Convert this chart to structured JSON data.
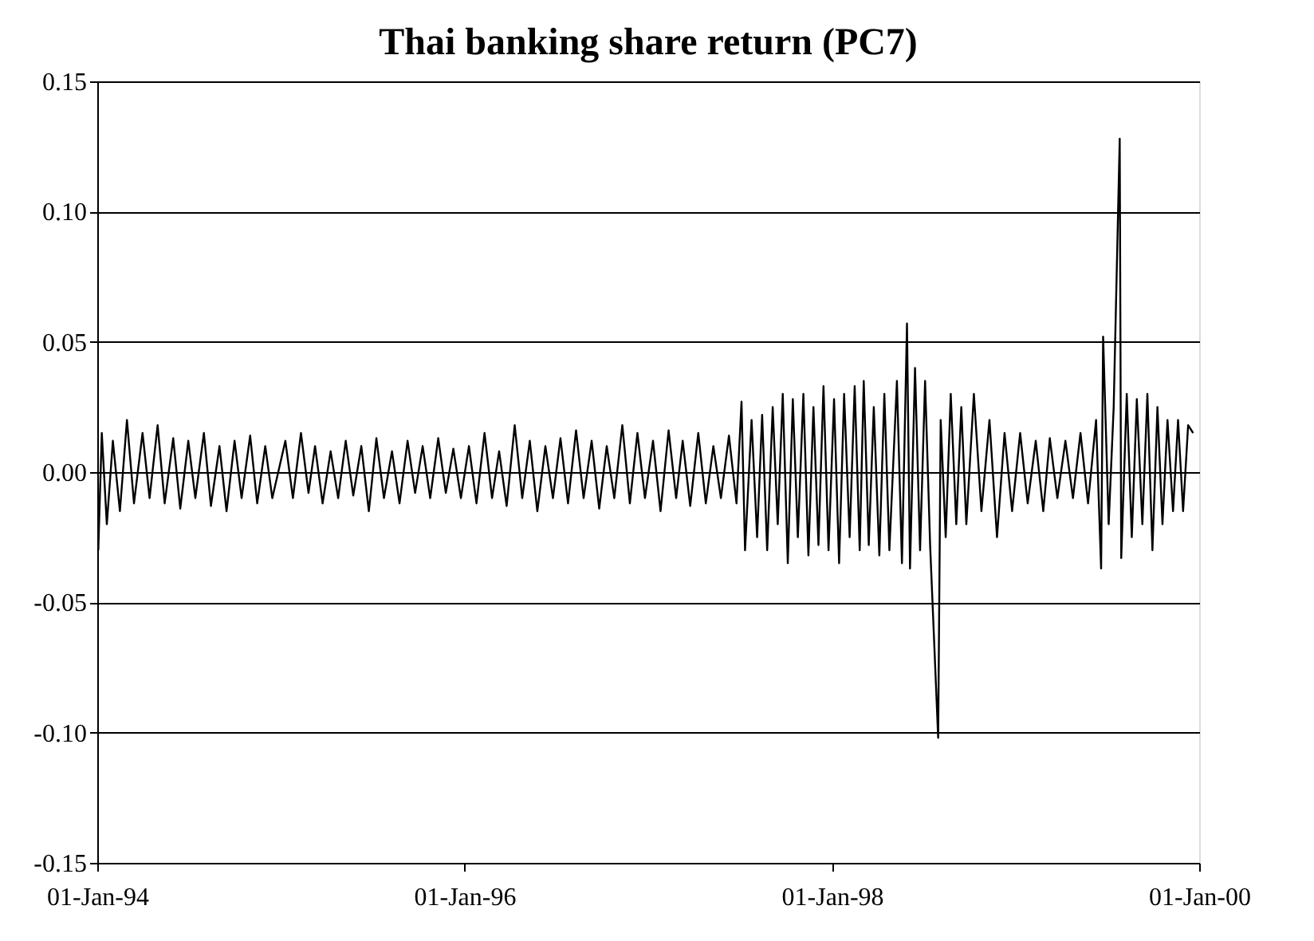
{
  "chart_data": {
    "type": "line",
    "title": "Thai banking share return (PC7)",
    "x": [
      "1994-01-03",
      "1994-01-10",
      "1994-01-20",
      "1994-02-01",
      "1994-02-15",
      "1994-03-01",
      "1994-03-15",
      "1994-04-01",
      "1994-04-15",
      "1994-05-01",
      "1994-05-15",
      "1994-06-01",
      "1994-06-15",
      "1994-07-01",
      "1994-07-15",
      "1994-08-01",
      "1994-08-15",
      "1994-09-01",
      "1994-09-15",
      "1994-10-01",
      "1994-10-15",
      "1994-11-01",
      "1994-11-15",
      "1994-12-01",
      "1994-12-15",
      "1995-01-10",
      "1995-01-25",
      "1995-02-10",
      "1995-02-25",
      "1995-03-10",
      "1995-03-25",
      "1995-04-10",
      "1995-04-25",
      "1995-05-10",
      "1995-05-25",
      "1995-06-10",
      "1995-06-25",
      "1995-07-10",
      "1995-07-25",
      "1995-08-10",
      "1995-08-25",
      "1995-09-10",
      "1995-09-25",
      "1995-10-10",
      "1995-10-25",
      "1995-11-10",
      "1995-11-25",
      "1995-12-10",
      "1995-12-25",
      "1996-01-10",
      "1996-01-25",
      "1996-02-10",
      "1996-02-25",
      "1996-03-10",
      "1996-03-25",
      "1996-04-10",
      "1996-04-25",
      "1996-05-10",
      "1996-05-25",
      "1996-06-10",
      "1996-06-25",
      "1996-07-10",
      "1996-07-25",
      "1996-08-10",
      "1996-08-25",
      "1996-09-10",
      "1996-09-25",
      "1996-10-10",
      "1996-10-25",
      "1996-11-10",
      "1996-11-25",
      "1996-12-10",
      "1996-12-25",
      "1997-01-10",
      "1997-01-25",
      "1997-02-10",
      "1997-02-25",
      "1997-03-10",
      "1997-03-25",
      "1997-04-10",
      "1997-04-25",
      "1997-05-10",
      "1997-05-25",
      "1997-06-10",
      "1997-06-25",
      "1997-07-05",
      "1997-07-12",
      "1997-07-25",
      "1997-08-05",
      "1997-08-15",
      "1997-08-25",
      "1997-09-05",
      "1997-09-15",
      "1997-09-25",
      "1997-10-05",
      "1997-10-15",
      "1997-10-25",
      "1997-11-05",
      "1997-11-15",
      "1997-11-25",
      "1997-12-05",
      "1997-12-15",
      "1997-12-25",
      "1998-01-05",
      "1998-01-15",
      "1998-01-25",
      "1998-02-05",
      "1998-02-15",
      "1998-02-25",
      "1998-03-05",
      "1998-03-15",
      "1998-03-25",
      "1998-04-05",
      "1998-04-15",
      "1998-04-25",
      "1998-05-10",
      "1998-05-20",
      "1998-05-30",
      "1998-06-05",
      "1998-06-15",
      "1998-06-25",
      "1998-07-05",
      "1998-07-15",
      "1998-07-31",
      "1998-08-05",
      "1998-08-15",
      "1998-08-25",
      "1998-09-05",
      "1998-09-15",
      "1998-09-25",
      "1998-10-10",
      "1998-10-25",
      "1998-11-10",
      "1998-11-25",
      "1998-12-10",
      "1998-12-25",
      "1999-01-10",
      "1999-01-25",
      "1999-02-10",
      "1999-02-25",
      "1999-03-10",
      "1999-03-25",
      "1999-04-10",
      "1999-04-25",
      "1999-05-10",
      "1999-05-25",
      "1999-06-10",
      "1999-06-20",
      "1999-06-24",
      "1999-07-05",
      "1999-07-15",
      "1999-07-27",
      "1999-07-30",
      "1999-08-10",
      "1999-08-20",
      "1999-08-30",
      "1999-09-10",
      "1999-09-20",
      "1999-09-30",
      "1999-10-10",
      "1999-10-20",
      "1999-10-30",
      "1999-11-10",
      "1999-11-20",
      "1999-11-30",
      "1999-12-10",
      "1999-12-20"
    ],
    "values": [
      -0.03,
      0.015,
      -0.02,
      0.012,
      -0.015,
      0.02,
      -0.012,
      0.015,
      -0.01,
      0.018,
      -0.012,
      0.013,
      -0.014,
      0.012,
      -0.01,
      0.015,
      -0.013,
      0.01,
      -0.015,
      0.012,
      -0.01,
      0.014,
      -0.012,
      0.01,
      -0.01,
      0.012,
      -0.01,
      0.015,
      -0.008,
      0.01,
      -0.012,
      0.008,
      -0.01,
      0.012,
      -0.009,
      0.01,
      -0.015,
      0.013,
      -0.01,
      0.008,
      -0.012,
      0.012,
      -0.008,
      0.01,
      -0.01,
      0.013,
      -0.008,
      0.009,
      -0.01,
      0.01,
      -0.012,
      0.015,
      -0.01,
      0.008,
      -0.013,
      0.018,
      -0.01,
      0.012,
      -0.015,
      0.01,
      -0.01,
      0.013,
      -0.012,
      0.016,
      -0.01,
      0.012,
      -0.014,
      0.01,
      -0.01,
      0.018,
      -0.012,
      0.015,
      -0.01,
      0.012,
      -0.015,
      0.016,
      -0.01,
      0.012,
      -0.013,
      0.015,
      -0.012,
      0.01,
      -0.01,
      0.014,
      -0.012,
      0.027,
      -0.03,
      0.02,
      -0.025,
      0.022,
      -0.03,
      0.025,
      -0.02,
      0.03,
      -0.035,
      0.028,
      -0.025,
      0.03,
      -0.032,
      0.025,
      -0.028,
      0.033,
      -0.03,
      0.028,
      -0.035,
      0.03,
      -0.025,
      0.033,
      -0.03,
      0.035,
      -0.028,
      0.025,
      -0.032,
      0.03,
      -0.03,
      0.035,
      -0.035,
      0.057,
      -0.037,
      0.04,
      -0.03,
      0.035,
      -0.028,
      -0.102,
      0.02,
      -0.025,
      0.03,
      -0.02,
      0.025,
      -0.02,
      0.03,
      -0.015,
      0.02,
      -0.025,
      0.015,
      -0.015,
      0.015,
      -0.012,
      0.012,
      -0.015,
      0.013,
      -0.01,
      0.012,
      -0.01,
      0.015,
      -0.012,
      0.02,
      -0.037,
      0.052,
      -0.02,
      0.025,
      0.128,
      -0.033,
      0.03,
      -0.025,
      0.028,
      -0.02,
      0.03,
      -0.03,
      0.025,
      -0.02,
      0.02,
      -0.015,
      0.02,
      -0.015,
      0.018,
      0.015
    ],
    "color": "#000000",
    "xlim": [
      "1994-01-01",
      "2000-01-01"
    ],
    "xticks": [
      {
        "value": "1994-01-01",
        "label": "01-Jan-94"
      },
      {
        "value": "1996-01-01",
        "label": "01-Jan-96"
      },
      {
        "value": "1998-01-01",
        "label": "01-Jan-98"
      },
      {
        "value": "2000-01-01",
        "label": "01-Jan-00"
      }
    ],
    "ylim": [
      -0.15,
      0.15
    ],
    "yticks": [
      {
        "value": -0.15,
        "label": "-0.15"
      },
      {
        "value": -0.1,
        "label": "-0.10"
      },
      {
        "value": -0.05,
        "label": "-0.05"
      },
      {
        "value": 0,
        "label": "0.00"
      },
      {
        "value": 0.05,
        "label": "0.05"
      },
      {
        "value": 0.1,
        "label": "0.10"
      },
      {
        "value": 0.15,
        "label": "0.15"
      }
    ],
    "grid": "y",
    "marker": "none",
    "line_style": "solid"
  }
}
